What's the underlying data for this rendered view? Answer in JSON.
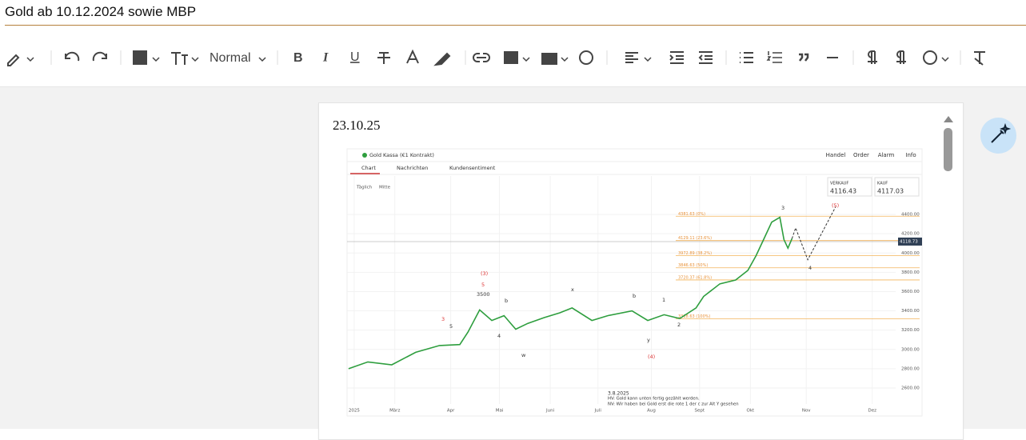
{
  "header": {
    "title": "Gold ab 10.12.2024 sowie MBP"
  },
  "toolbar": {
    "paragraph_style": "Normal",
    "format_glyphs": [
      "B",
      "I",
      "U"
    ]
  },
  "document": {
    "paragraphs": [
      "23.10.25"
    ]
  },
  "image": {
    "top_bar": {
      "instrument": "Gold Kassa (€1 Kontrakt)",
      "menu": [
        "Handel",
        "Order",
        "Alarm",
        "Info"
      ],
      "tabs": [
        "Chart",
        "Nachrichten",
        "Kundensentiment"
      ],
      "options": [
        "Täglich",
        "Mitte"
      ]
    },
    "quotes": [
      {
        "label": "VERKAUF",
        "price": "4116.43"
      },
      {
        "label": "KAUF",
        "price": "4117.03"
      }
    ],
    "note": [
      "3.8.2025",
      "HV: Gold kann unten fertig gezählt werden.",
      "NV: Wir haben bei Gold erst die rote 1 der c zur Alt Y gesehen"
    ],
    "chart_data": {
      "type": "line",
      "x": [
        1.09,
        1.47,
        1.94,
        2.41,
        2.88,
        3.28,
        3.44,
        3.67,
        3.91,
        4.15,
        4.38,
        4.62,
        4.94,
        5.25,
        5.49,
        5.88,
        6.19,
        6.67,
        6.98,
        7.3,
        7.61,
        7.93,
        8.08,
        8.4,
        8.71,
        8.95,
        9.11,
        9.26,
        9.42,
        9.58,
        9.66,
        9.74,
        9.82
      ],
      "series": [
        {
          "color": "#2e9e3e",
          "values": [
            2800,
            2870,
            2840,
            2970,
            3040,
            3050,
            3180,
            3410,
            3300,
            3350,
            3210,
            3270,
            3330,
            3380,
            3430,
            3300,
            3350,
            3400,
            3300,
            3360,
            3320,
            3430,
            3550,
            3680,
            3720,
            3820,
            3970,
            4140,
            4320,
            4370,
            4140,
            4050,
            4150
          ]
        }
      ],
      "projection": {
        "x": [
          9.82,
          9.89,
          10.13,
          10.68
        ],
        "values": [
          4150,
          4260,
          3930,
          4480
        ],
        "color": "#333"
      },
      "current_price": {
        "value": 4118.73,
        "label": "4118.73"
      },
      "fib_levels": [
        {
          "value": 4381.63,
          "label": "4381.63 (0%)"
        },
        {
          "value": 4129.11,
          "label": "4129.11 (23.6%)"
        },
        {
          "value": 3972.89,
          "label": "3972.89 (38.2%)"
        },
        {
          "value": 3846.63,
          "label": "3846.63 (50%)"
        },
        {
          "value": 3720.37,
          "label": "3720.37 (61.8%)"
        },
        {
          "value": 3318.63,
          "label": "3318.63 (100%)"
        }
      ],
      "annotations": [
        "(3)",
        "5",
        "3500",
        "3",
        "5",
        "4",
        "b",
        "x",
        "b",
        "1",
        "2",
        "(4)",
        "y",
        "3",
        "4",
        "(5)",
        "w"
      ],
      "xlim": [
        1.06,
        11.86
      ],
      "ylim": [
        2500,
        4550
      ],
      "xticks": [
        {
          "value": 1.2,
          "label": "2025"
        },
        {
          "value": 2.0,
          "label": "März"
        },
        {
          "value": 3.1,
          "label": "Apr"
        },
        {
          "value": 4.06,
          "label": "Mai"
        },
        {
          "value": 5.06,
          "label": "Juni"
        },
        {
          "value": 6.0,
          "label": "Juli"
        },
        {
          "value": 7.05,
          "label": "Aug"
        },
        {
          "value": 8.0,
          "label": "Sept"
        },
        {
          "value": 9.0,
          "label": "Okt"
        },
        {
          "value": 10.1,
          "label": "Nov"
        },
        {
          "value": 11.4,
          "label": "Dez"
        }
      ],
      "yticks": [
        {
          "value": 2600,
          "label": "2600.00"
        },
        {
          "value": 2800,
          "label": "2800.00"
        },
        {
          "value": 3000,
          "label": "3000.00"
        },
        {
          "value": 3200,
          "label": "3200.00"
        },
        {
          "value": 3400,
          "label": "3400.00"
        },
        {
          "value": 3600,
          "label": "3600.00"
        },
        {
          "value": 3800,
          "label": "3800.00"
        },
        {
          "value": 4000,
          "label": "4000.00"
        },
        {
          "value": 4200,
          "label": "4200.00"
        },
        {
          "value": 4400,
          "label": "4400.00"
        }
      ],
      "grid": true
    }
  }
}
